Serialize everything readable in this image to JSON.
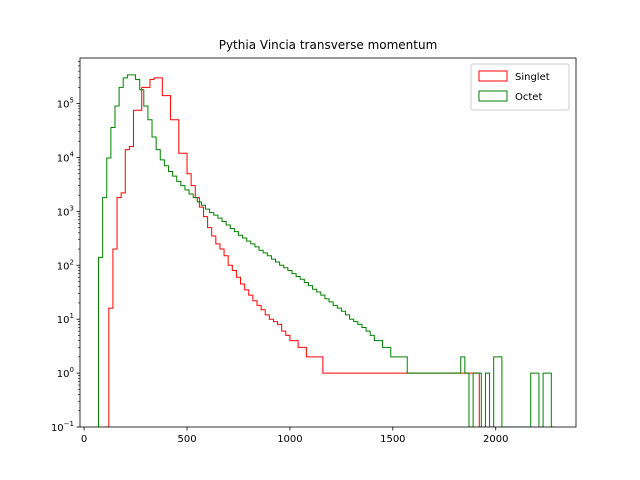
{
  "chart_data": {
    "type": "histogram",
    "title": "Pythia Vincia transverse momentum",
    "xlabel": "",
    "ylabel": "",
    "xscale": "linear",
    "yscale": "log",
    "xlim": [
      -20,
      2390
    ],
    "ylim": [
      0.1,
      700000
    ],
    "x_ticks": [
      0,
      500,
      1000,
      1500,
      2000
    ],
    "x_tick_labels": [
      "0",
      "500",
      "1000",
      "1500",
      "2000"
    ],
    "y_ticks": [
      0.1,
      1,
      10,
      100,
      1000,
      10000,
      100000
    ],
    "y_tick_labels": [
      "10",
      "10",
      "10",
      "10",
      "10",
      "10",
      "10"
    ],
    "y_tick_exponents": [
      "−1",
      "0",
      "1",
      "2",
      "3",
      "4",
      "5"
    ],
    "legend_position": "top-right",
    "legend": [
      "Singlet",
      "Octet"
    ],
    "series": [
      {
        "name": "Singlet",
        "color": "#ff0000",
        "bin_width": 20,
        "bins": [
          [
            100,
            120,
            0.1
          ],
          [
            120,
            140,
            16
          ],
          [
            140,
            160,
            200
          ],
          [
            160,
            180,
            1800
          ],
          [
            180,
            200,
            2200
          ],
          [
            200,
            220,
            14000
          ],
          [
            220,
            240,
            16000
          ],
          [
            240,
            260,
            75000
          ],
          [
            260,
            280,
            75000
          ],
          [
            280,
            300,
            200000
          ],
          [
            300,
            320,
            200000
          ],
          [
            320,
            340,
            280000
          ],
          [
            340,
            360,
            300000
          ],
          [
            360,
            380,
            300000
          ],
          [
            380,
            400,
            140000
          ],
          [
            400,
            420,
            140000
          ],
          [
            420,
            440,
            50000
          ],
          [
            440,
            460,
            50000
          ],
          [
            460,
            480,
            12000
          ],
          [
            480,
            500,
            12000
          ],
          [
            500,
            520,
            5000
          ],
          [
            520,
            540,
            3000
          ],
          [
            540,
            560,
            1800
          ],
          [
            560,
            580,
            1200
          ],
          [
            580,
            600,
            800
          ],
          [
            600,
            620,
            500
          ],
          [
            620,
            640,
            350
          ],
          [
            640,
            660,
            250
          ],
          [
            660,
            680,
            200
          ],
          [
            680,
            700,
            150
          ],
          [
            700,
            720,
            100
          ],
          [
            720,
            740,
            80
          ],
          [
            740,
            760,
            60
          ],
          [
            760,
            780,
            45
          ],
          [
            780,
            800,
            35
          ],
          [
            800,
            820,
            28
          ],
          [
            820,
            840,
            22
          ],
          [
            840,
            860,
            18
          ],
          [
            860,
            880,
            15
          ],
          [
            880,
            900,
            12
          ],
          [
            900,
            920,
            10
          ],
          [
            920,
            940,
            9
          ],
          [
            940,
            960,
            8
          ],
          [
            960,
            980,
            6
          ],
          [
            980,
            1000,
            5
          ],
          [
            1000,
            1020,
            4
          ],
          [
            1020,
            1040,
            4
          ],
          [
            1040,
            1060,
            3
          ],
          [
            1060,
            1080,
            3
          ],
          [
            1080,
            1100,
            2
          ],
          [
            1100,
            1120,
            2
          ],
          [
            1120,
            1140,
            2
          ],
          [
            1140,
            1160,
            2
          ],
          [
            1160,
            1180,
            1
          ],
          [
            1180,
            1200,
            1
          ],
          [
            1200,
            1220,
            1
          ],
          [
            1220,
            1240,
            1
          ],
          [
            1240,
            1260,
            1
          ],
          [
            1260,
            1280,
            1
          ],
          [
            1280,
            1300,
            1
          ],
          [
            1300,
            1320,
            1
          ],
          [
            1320,
            1340,
            1
          ],
          [
            1340,
            1360,
            1
          ],
          [
            1360,
            1380,
            1
          ],
          [
            1380,
            1400,
            1
          ],
          [
            1400,
            1420,
            1
          ],
          [
            1420,
            1440,
            1
          ],
          [
            1440,
            1460,
            1
          ],
          [
            1460,
            1480,
            1
          ],
          [
            1480,
            1500,
            1
          ],
          [
            1500,
            1520,
            1
          ],
          [
            1520,
            1540,
            1
          ],
          [
            1540,
            1560,
            1
          ],
          [
            1560,
            1580,
            1
          ],
          [
            1580,
            1600,
            1
          ],
          [
            1600,
            1620,
            1
          ],
          [
            1620,
            1640,
            1
          ],
          [
            1640,
            1660,
            1
          ],
          [
            1660,
            1680,
            1
          ],
          [
            1680,
            1700,
            1
          ],
          [
            1700,
            1720,
            1
          ],
          [
            1720,
            1740,
            1
          ],
          [
            1740,
            1760,
            1
          ],
          [
            1760,
            1780,
            1
          ],
          [
            1780,
            1800,
            1
          ],
          [
            1800,
            1820,
            1
          ],
          [
            1820,
            1840,
            1
          ],
          [
            1840,
            1860,
            1
          ],
          [
            1860,
            1880,
            1
          ],
          [
            1880,
            1900,
            1
          ],
          [
            1900,
            1920,
            1
          ],
          [
            1920,
            1940,
            0.1
          ]
        ]
      },
      {
        "name": "Octet",
        "color": "#008000",
        "bin_width": 20,
        "bins": [
          [
            70,
            90,
            140
          ],
          [
            90,
            110,
            1800
          ],
          [
            110,
            130,
            9800
          ],
          [
            130,
            150,
            36000
          ],
          [
            150,
            170,
            90000
          ],
          [
            170,
            190,
            200000
          ],
          [
            190,
            210,
            300000
          ],
          [
            210,
            230,
            340000
          ],
          [
            230,
            250,
            340000
          ],
          [
            250,
            270,
            280000
          ],
          [
            270,
            290,
            180000
          ],
          [
            290,
            310,
            90000
          ],
          [
            310,
            330,
            50000
          ],
          [
            330,
            350,
            24000
          ],
          [
            350,
            370,
            14000
          ],
          [
            370,
            390,
            9000
          ],
          [
            390,
            410,
            7000
          ],
          [
            410,
            430,
            5500
          ],
          [
            430,
            450,
            4500
          ],
          [
            450,
            470,
            3600
          ],
          [
            470,
            490,
            3000
          ],
          [
            490,
            510,
            2500
          ],
          [
            510,
            530,
            2100
          ],
          [
            530,
            550,
            1800
          ],
          [
            550,
            570,
            1500
          ],
          [
            570,
            590,
            1300
          ],
          [
            590,
            610,
            1100
          ],
          [
            610,
            630,
            950
          ],
          [
            630,
            650,
            850
          ],
          [
            650,
            670,
            750
          ],
          [
            670,
            690,
            650
          ],
          [
            690,
            710,
            560
          ],
          [
            710,
            730,
            480
          ],
          [
            730,
            750,
            420
          ],
          [
            750,
            770,
            360
          ],
          [
            770,
            790,
            320
          ],
          [
            790,
            810,
            280
          ],
          [
            810,
            830,
            250
          ],
          [
            830,
            850,
            220
          ],
          [
            850,
            870,
            190
          ],
          [
            870,
            890,
            170
          ],
          [
            890,
            910,
            150
          ],
          [
            910,
            930,
            130
          ],
          [
            930,
            950,
            115
          ],
          [
            950,
            970,
            100
          ],
          [
            970,
            990,
            90
          ],
          [
            990,
            1010,
            80
          ],
          [
            1010,
            1030,
            70
          ],
          [
            1030,
            1050,
            62
          ],
          [
            1050,
            1070,
            55
          ],
          [
            1070,
            1090,
            48
          ],
          [
            1090,
            1110,
            42
          ],
          [
            1110,
            1130,
            36
          ],
          [
            1130,
            1150,
            32
          ],
          [
            1150,
            1170,
            28
          ],
          [
            1170,
            1190,
            24
          ],
          [
            1190,
            1210,
            21
          ],
          [
            1210,
            1230,
            18
          ],
          [
            1230,
            1250,
            16
          ],
          [
            1250,
            1270,
            14
          ],
          [
            1270,
            1290,
            12
          ],
          [
            1290,
            1310,
            10
          ],
          [
            1310,
            1330,
            9
          ],
          [
            1330,
            1350,
            8
          ],
          [
            1350,
            1370,
            7
          ],
          [
            1370,
            1390,
            6
          ],
          [
            1390,
            1410,
            5
          ],
          [
            1410,
            1430,
            4
          ],
          [
            1430,
            1450,
            4
          ],
          [
            1450,
            1470,
            3
          ],
          [
            1470,
            1490,
            3
          ],
          [
            1490,
            1510,
            2
          ],
          [
            1510,
            1530,
            2
          ],
          [
            1530,
            1550,
            2
          ],
          [
            1550,
            1570,
            2
          ],
          [
            1570,
            1590,
            1
          ],
          [
            1590,
            1610,
            1
          ],
          [
            1610,
            1630,
            1
          ],
          [
            1630,
            1650,
            1
          ],
          [
            1650,
            1670,
            1
          ],
          [
            1670,
            1690,
            1
          ],
          [
            1690,
            1710,
            1
          ],
          [
            1710,
            1730,
            1
          ],
          [
            1730,
            1750,
            1
          ],
          [
            1750,
            1770,
            1
          ],
          [
            1770,
            1790,
            1
          ],
          [
            1790,
            1810,
            1
          ],
          [
            1810,
            1830,
            1
          ],
          [
            1830,
            1850,
            2
          ],
          [
            1850,
            1870,
            1
          ],
          [
            1870,
            1890,
            0.1
          ],
          [
            1890,
            1910,
            1
          ],
          [
            1910,
            1930,
            1
          ],
          [
            1930,
            1950,
            0.1
          ],
          [
            1950,
            1970,
            1
          ],
          [
            1970,
            1990,
            0.1
          ],
          [
            1990,
            2010,
            2
          ],
          [
            2010,
            2030,
            2
          ],
          [
            2030,
            2050,
            0.1
          ],
          [
            2050,
            2070,
            0.1
          ],
          [
            2070,
            2090,
            0.1
          ],
          [
            2090,
            2110,
            0.1
          ],
          [
            2110,
            2130,
            0.1
          ],
          [
            2130,
            2150,
            0.1
          ],
          [
            2150,
            2170,
            0.1
          ],
          [
            2170,
            2190,
            1
          ],
          [
            2190,
            2210,
            1
          ],
          [
            2210,
            2230,
            0.1
          ],
          [
            2230,
            2250,
            1
          ],
          [
            2250,
            2270,
            1
          ],
          [
            2270,
            2290,
            0.1
          ]
        ]
      }
    ]
  }
}
